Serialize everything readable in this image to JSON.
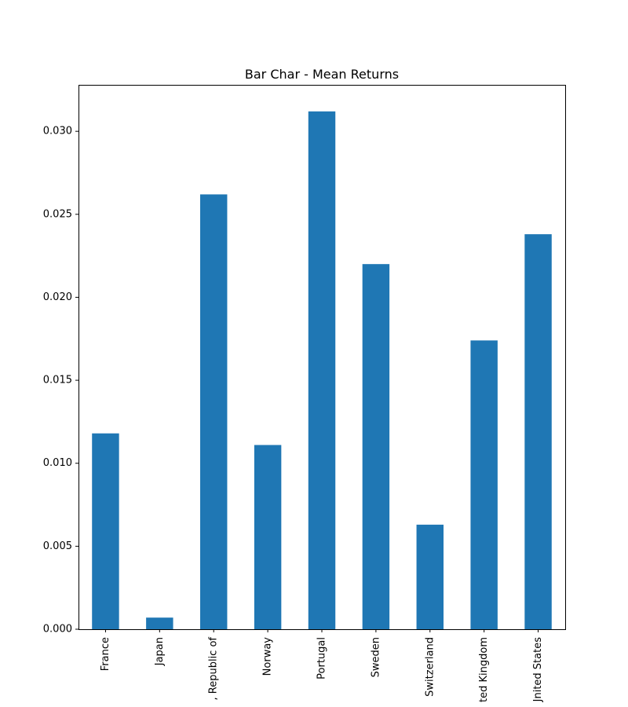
{
  "chart_data": {
    "type": "bar",
    "title": "Bar Char - Mean Returns",
    "xlabel": "",
    "ylabel": "",
    "categories": [
      "France",
      "Japan",
      ", Republic of",
      "Norway",
      "Portugal",
      "Sweden",
      "Switzerland",
      "ted Kingdom",
      "Jnited States"
    ],
    "values": [
      0.0118,
      0.0007,
      0.0262,
      0.0111,
      0.0312,
      0.022,
      0.0063,
      0.0174,
      0.0238
    ],
    "ylim": [
      0,
      0.0328
    ],
    "yticks": [
      "0.000",
      "0.005",
      "0.010",
      "0.015",
      "0.020",
      "0.025",
      "0.030"
    ],
    "bar_color": "#1f77b4",
    "grid": false,
    "legend": "none"
  }
}
